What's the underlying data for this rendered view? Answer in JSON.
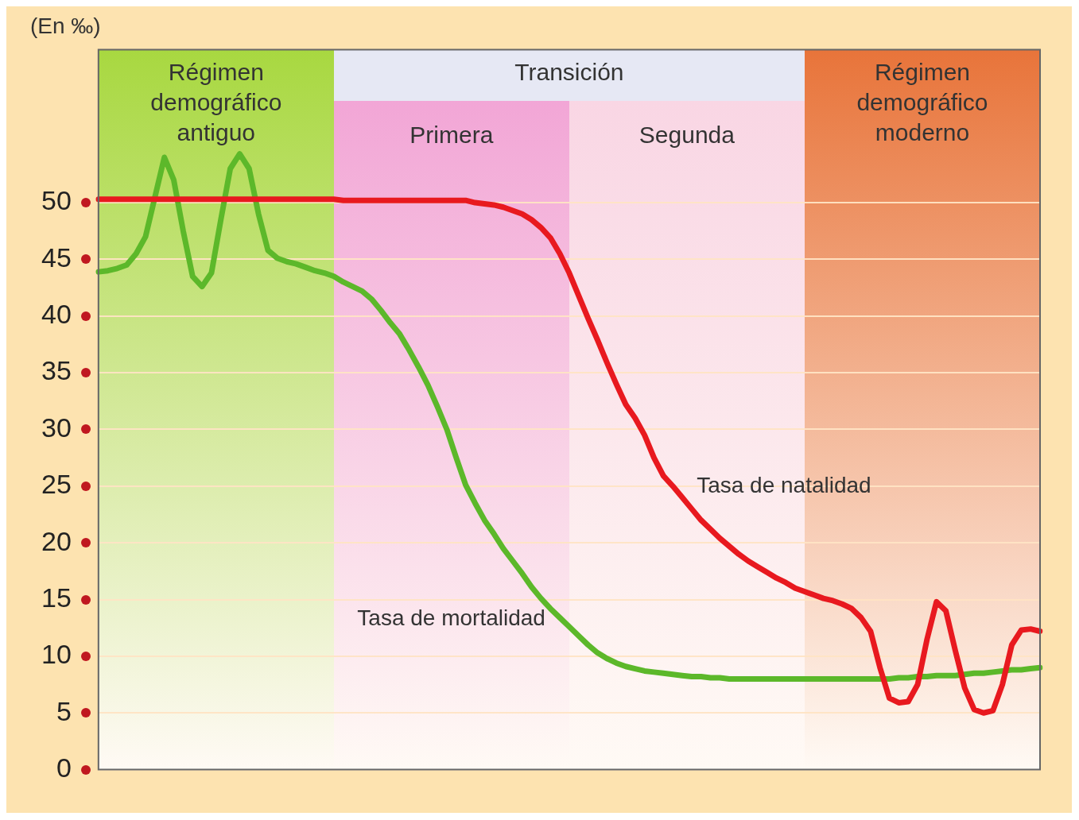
{
  "chart_data": {
    "type": "line",
    "ylabel": "(En ‰)",
    "categories": [
      null,
      null,
      null,
      null,
      null,
      null,
      null,
      null,
      null,
      null,
      null,
      null,
      null,
      null,
      null,
      null,
      null,
      null,
      null,
      null,
      null,
      null,
      null,
      null,
      null,
      null,
      null,
      null,
      null,
      null,
      null,
      null,
      null,
      null,
      null,
      null,
      null,
      null,
      null,
      null,
      null,
      null,
      null,
      null,
      null,
      null,
      null,
      null,
      null,
      null,
      null,
      null,
      null,
      null,
      null,
      null,
      null,
      null,
      null,
      null,
      null,
      null,
      null,
      null,
      null,
      null,
      null,
      null,
      null,
      null,
      null,
      null,
      null,
      null,
      null,
      null,
      null,
      null,
      null,
      null,
      null,
      null,
      null,
      null,
      null,
      null,
      null,
      null,
      null,
      null,
      null,
      null,
      null,
      null,
      null,
      null,
      null,
      null,
      null,
      null,
      null
    ],
    "series": [
      {
        "name": "Tasa de natalidad",
        "color": "#e8191f",
        "values": [
          50.3,
          50.3,
          50.3,
          50.3,
          50.3,
          50.3,
          50.3,
          50.3,
          50.3,
          50.3,
          50.3,
          50.3,
          50.3,
          50.3,
          50.3,
          50.3,
          50.3,
          50.3,
          50.3,
          50.3,
          50.3,
          50.3,
          50.3,
          50.3,
          50.3,
          50.3,
          50.2,
          50.2,
          50.2,
          50.2,
          50.2,
          50.2,
          50.2,
          50.2,
          50.2,
          50.2,
          50.2,
          50.2,
          50.2,
          50.2,
          50.0,
          49.9,
          49.8,
          49.6,
          49.3,
          49.0,
          48.5,
          47.8,
          46.9,
          45.5,
          43.8,
          41.8,
          39.8,
          37.9,
          35.9,
          34.0,
          32.2,
          31.0,
          29.5,
          27.5,
          25.9,
          25.0,
          24.0,
          23.0,
          22.0,
          21.2,
          20.4,
          19.7,
          19.0,
          18.4,
          17.9,
          17.4,
          16.9,
          16.5,
          16.0,
          15.7,
          15.4,
          15.1,
          14.9,
          14.6,
          14.2,
          13.4,
          12.2,
          9.0,
          6.3,
          5.9,
          6.0,
          7.5,
          11.5,
          14.8,
          14.0,
          10.5,
          7.2,
          5.3,
          5.0,
          5.2,
          7.5,
          11.0,
          12.3,
          12.4,
          12.2
        ]
      },
      {
        "name": "Tasa de mortalidad",
        "color": "#5cb82a",
        "values": [
          43.9,
          44.0,
          44.2,
          44.5,
          45.5,
          47.0,
          50.5,
          54.0,
          52.0,
          47.5,
          43.5,
          42.6,
          43.8,
          48.5,
          53.0,
          54.3,
          53.0,
          49.0,
          45.8,
          45.1,
          44.8,
          44.6,
          44.3,
          44.0,
          43.8,
          43.5,
          43.0,
          42.6,
          42.2,
          41.5,
          40.5,
          39.4,
          38.4,
          37.0,
          35.5,
          33.9,
          32.0,
          30.0,
          27.5,
          25.1,
          23.5,
          22.0,
          20.8,
          19.5,
          18.4,
          17.3,
          16.1,
          15.1,
          14.2,
          13.4,
          12.6,
          11.8,
          11.0,
          10.3,
          9.8,
          9.4,
          9.1,
          8.9,
          8.7,
          8.6,
          8.5,
          8.4,
          8.3,
          8.2,
          8.2,
          8.1,
          8.1,
          8.0,
          8.0,
          8.0,
          8.0,
          8.0,
          8.0,
          8.0,
          8.0,
          8.0,
          8.0,
          8.0,
          8.0,
          8.0,
          8.0,
          8.0,
          8.0,
          8.0,
          8.0,
          8.1,
          8.1,
          8.2,
          8.2,
          8.3,
          8.3,
          8.3,
          8.4,
          8.5,
          8.5,
          8.6,
          8.7,
          8.8,
          8.8,
          8.9,
          9.0
        ]
      }
    ],
    "ylim": [
      0,
      63.5
    ],
    "yticks": [
      0,
      5,
      10,
      15,
      20,
      25,
      30,
      35,
      40,
      45,
      50
    ],
    "tick_labels": "y",
    "grid": "y",
    "legend": false,
    "marker": "none",
    "line_style": "solid",
    "annotations": [
      "Régimen demográfico antiguo",
      "Transición",
      "Primera",
      "Segunda",
      "Régimen demográfico moderno"
    ]
  }
}
